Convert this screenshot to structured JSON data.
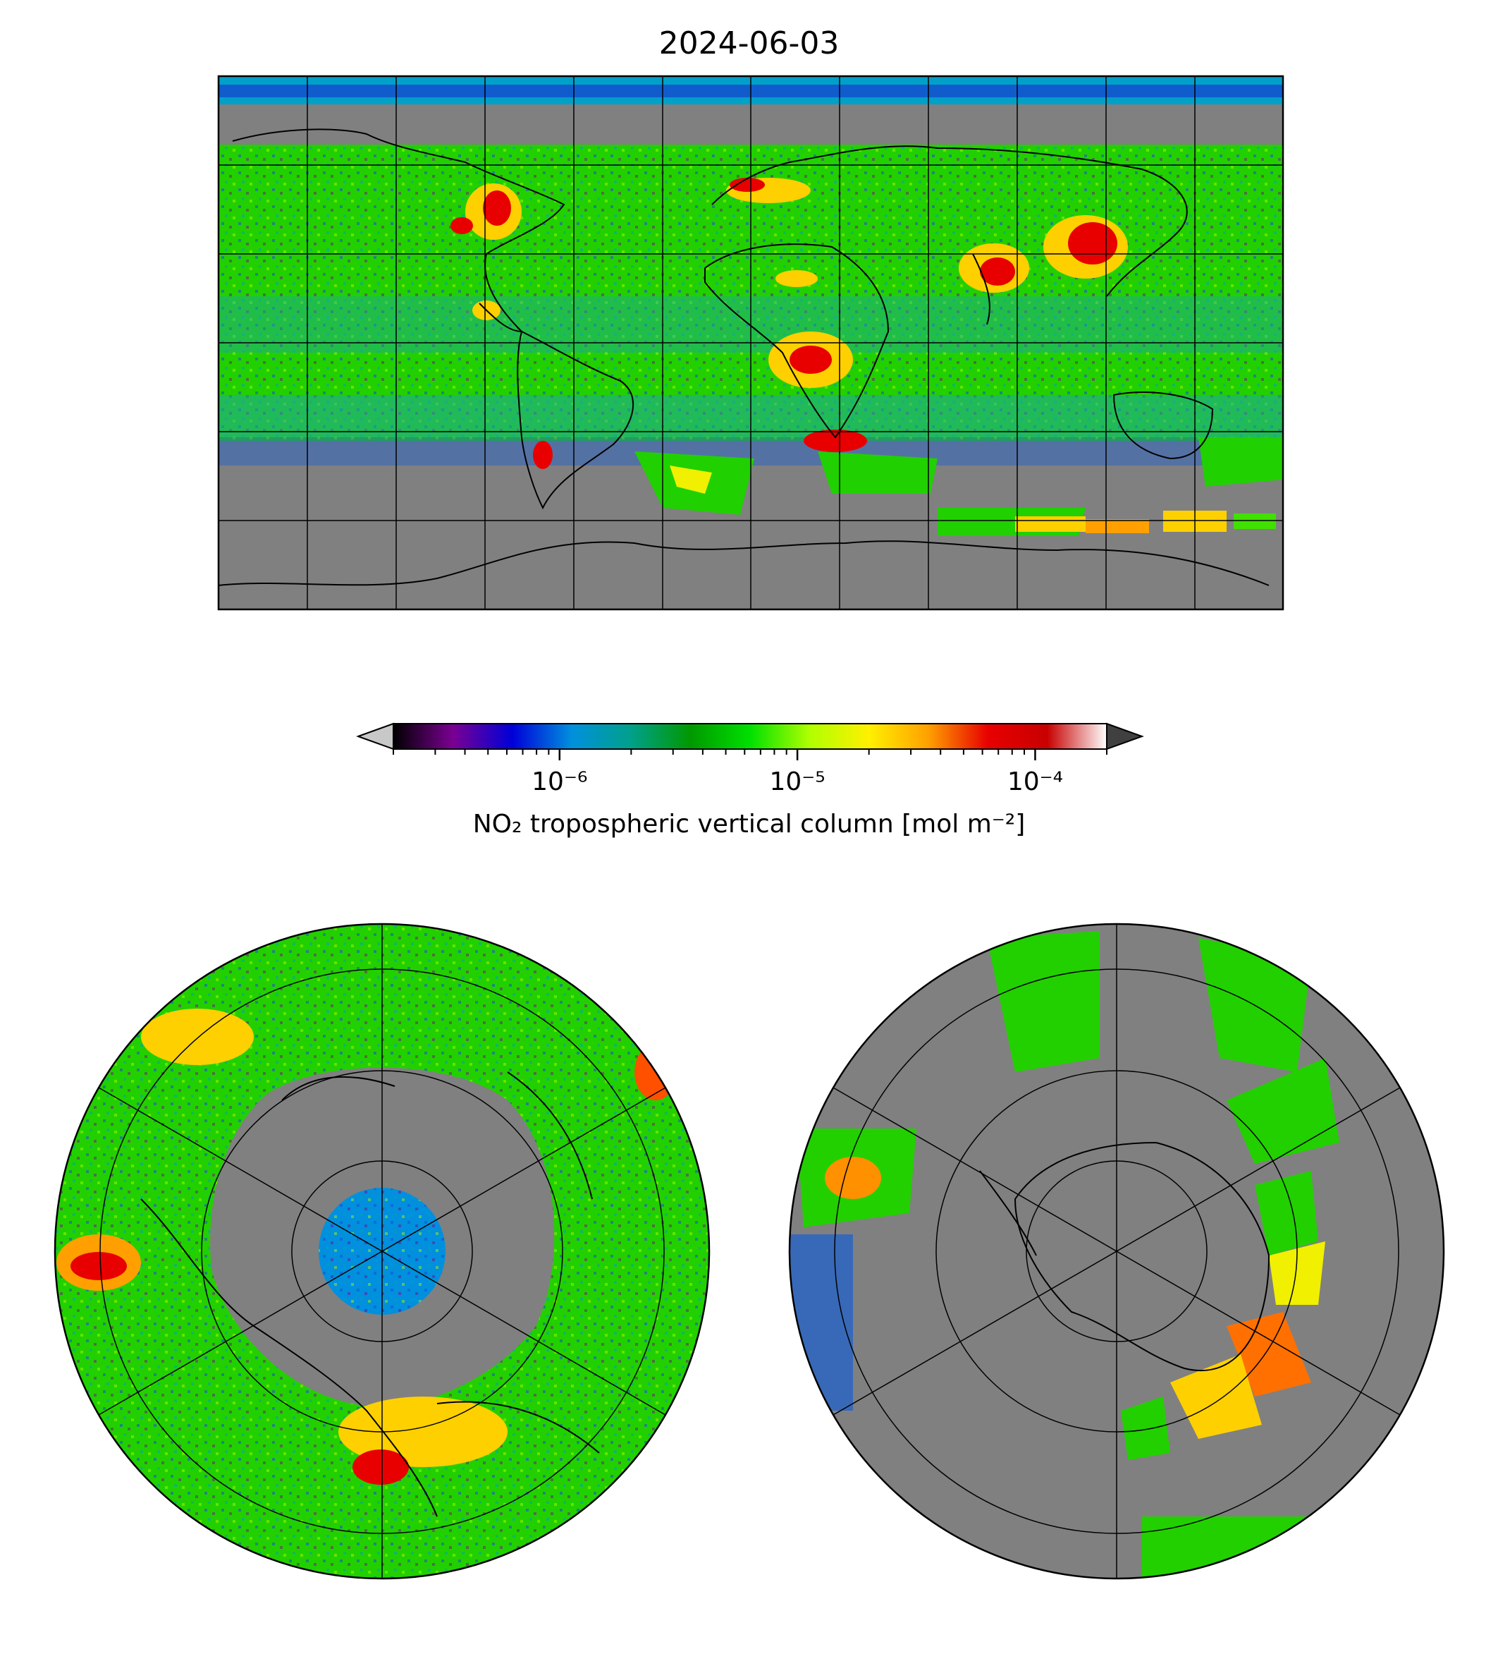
{
  "title": "2024-06-03",
  "colors": {
    "no_data": "#808080",
    "coastline": "#000000",
    "graticule": "#000000"
  },
  "colorbar": {
    "label": "NO₂ tropospheric vertical column [mol m⁻²]",
    "scale": "log",
    "range": [
      2e-07,
      0.0002
    ],
    "ticks": [
      {
        "value": 1e-06,
        "label": "10⁻⁶"
      },
      {
        "value": 1e-05,
        "label": "10⁻⁵"
      },
      {
        "value": 0.0001,
        "label": "10⁻⁴"
      }
    ],
    "extend": "both",
    "under_color": "#c8c8c8",
    "over_color": "#404040",
    "stops": [
      "#000000",
      "#7a0092",
      "#0000d8",
      "#0090dd",
      "#00a08a",
      "#009900",
      "#00e000",
      "#b0ff00",
      "#fff000",
      "#ffa000",
      "#e80000",
      "#c80000",
      "#ffffff"
    ]
  },
  "maps": [
    {
      "name": "global",
      "projection": "PlateCarree",
      "gridlines_lon_step": 30,
      "gridlines_lat_step": 30
    },
    {
      "name": "north-polar",
      "projection": "North Polar Stereographic"
    },
    {
      "name": "south-polar",
      "projection": "South Polar Stereographic"
    }
  ]
}
